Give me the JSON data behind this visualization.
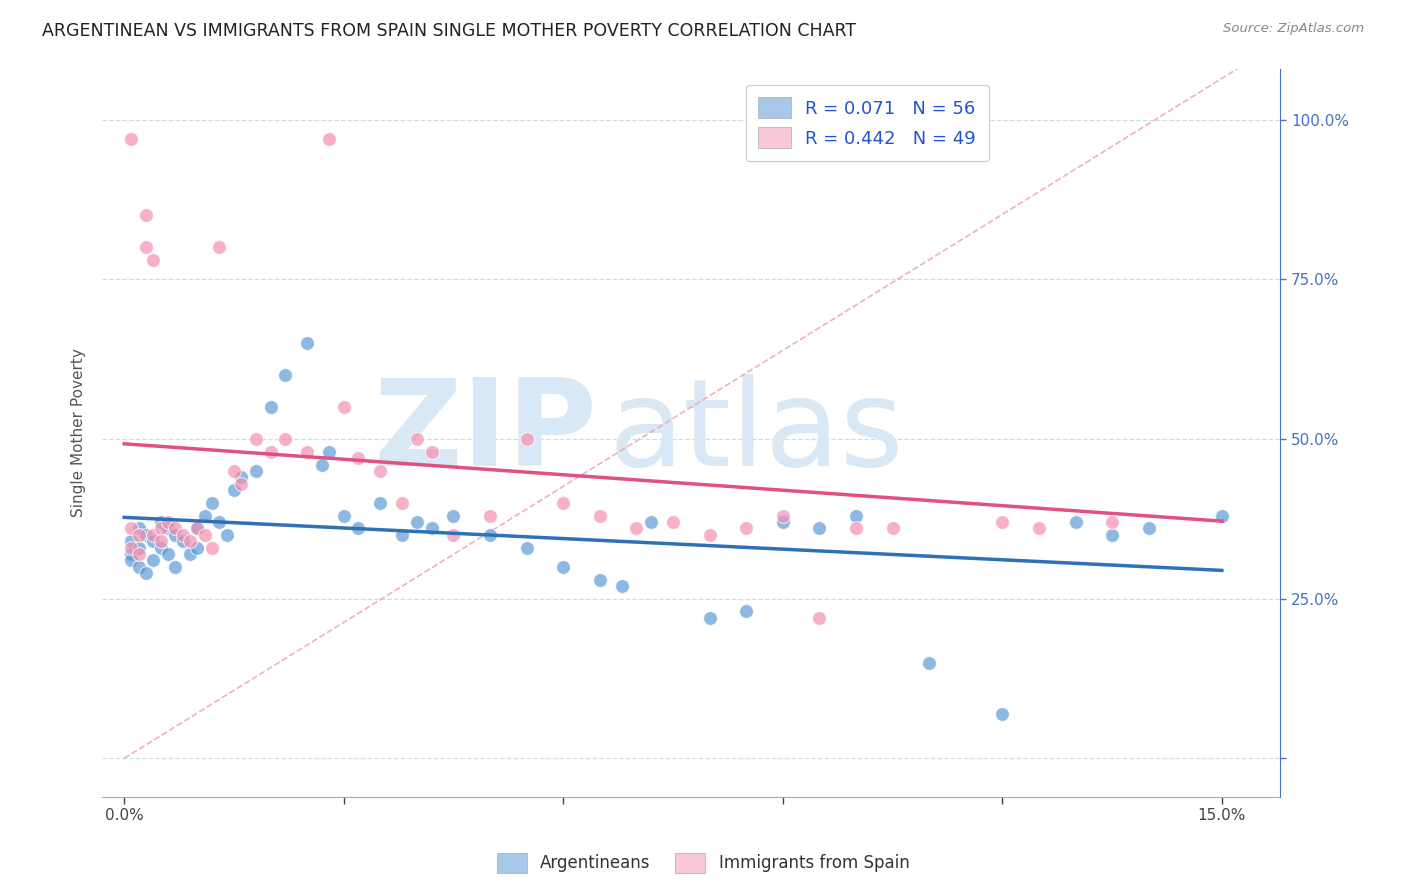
{
  "title": "ARGENTINEAN VS IMMIGRANTS FROM SPAIN SINGLE MOTHER POVERTY CORRELATION CHART",
  "source": "Source: ZipAtlas.com",
  "ylabel": "Single Mother Poverty",
  "y_tick_vals": [
    0.0,
    0.25,
    0.5,
    0.75,
    1.0
  ],
  "y_tick_labels_right": [
    "",
    "25.0%",
    "50.0%",
    "75.0%",
    "100.0%"
  ],
  "x_tick_vals": [
    0.0,
    0.03,
    0.06,
    0.09,
    0.12,
    0.15
  ],
  "x_tick_labels": [
    "0.0%",
    "",
    "",
    "",
    "",
    "15.0%"
  ],
  "legend1_label": "R = 0.071   N = 56",
  "legend2_label": "R = 0.442   N = 49",
  "legend1_color": "#a8c8e8",
  "legend2_color": "#f8c8d8",
  "blue_color": "#5b9bd5",
  "pink_color": "#f48fb1",
  "trendline1_color": "#3070b8",
  "trendline2_color": "#e05080",
  "watermark_zip": "ZIP",
  "watermark_atlas": "atlas",
  "watermark_color": "#d8e8f5",
  "arg_x": [
    0.001,
    0.001,
    0.001,
    0.002,
    0.002,
    0.002,
    0.003,
    0.003,
    0.004,
    0.004,
    0.005,
    0.005,
    0.006,
    0.006,
    0.007,
    0.007,
    0.008,
    0.009,
    0.01,
    0.01,
    0.011,
    0.012,
    0.013,
    0.014,
    0.015,
    0.016,
    0.018,
    0.02,
    0.022,
    0.025,
    0.027,
    0.028,
    0.03,
    0.032,
    0.035,
    0.038,
    0.04,
    0.042,
    0.045,
    0.05,
    0.055,
    0.06,
    0.065,
    0.068,
    0.072,
    0.08,
    0.085,
    0.09,
    0.095,
    0.1,
    0.11,
    0.12,
    0.13,
    0.135,
    0.14,
    0.15
  ],
  "arg_y": [
    0.34,
    0.32,
    0.31,
    0.36,
    0.33,
    0.3,
    0.35,
    0.29,
    0.34,
    0.31,
    0.37,
    0.33,
    0.36,
    0.32,
    0.35,
    0.3,
    0.34,
    0.32,
    0.36,
    0.33,
    0.38,
    0.4,
    0.37,
    0.35,
    0.42,
    0.44,
    0.45,
    0.55,
    0.6,
    0.65,
    0.46,
    0.48,
    0.38,
    0.36,
    0.4,
    0.35,
    0.37,
    0.36,
    0.38,
    0.35,
    0.33,
    0.3,
    0.28,
    0.27,
    0.37,
    0.22,
    0.23,
    0.37,
    0.36,
    0.38,
    0.15,
    0.07,
    0.37,
    0.35,
    0.36,
    0.38
  ],
  "spain_x": [
    0.001,
    0.001,
    0.001,
    0.002,
    0.002,
    0.003,
    0.003,
    0.004,
    0.004,
    0.005,
    0.005,
    0.006,
    0.007,
    0.008,
    0.009,
    0.01,
    0.011,
    0.012,
    0.013,
    0.015,
    0.016,
    0.018,
    0.02,
    0.022,
    0.025,
    0.028,
    0.03,
    0.032,
    0.035,
    0.038,
    0.04,
    0.042,
    0.045,
    0.05,
    0.055,
    0.06,
    0.065,
    0.07,
    0.075,
    0.08,
    0.085,
    0.09,
    0.095,
    0.1,
    0.105,
    0.11,
    0.12,
    0.125,
    0.135
  ],
  "spain_y": [
    0.97,
    0.36,
    0.33,
    0.35,
    0.32,
    0.85,
    0.8,
    0.78,
    0.35,
    0.36,
    0.34,
    0.37,
    0.36,
    0.35,
    0.34,
    0.36,
    0.35,
    0.33,
    0.8,
    0.45,
    0.43,
    0.5,
    0.48,
    0.5,
    0.48,
    0.97,
    0.55,
    0.47,
    0.45,
    0.4,
    0.5,
    0.48,
    0.35,
    0.38,
    0.5,
    0.4,
    0.38,
    0.36,
    0.37,
    0.35,
    0.36,
    0.38,
    0.22,
    0.36,
    0.36,
    0.97,
    0.37,
    0.36,
    0.37
  ],
  "xlim": [
    -0.003,
    0.158
  ],
  "ylim": [
    -0.06,
    1.08
  ]
}
